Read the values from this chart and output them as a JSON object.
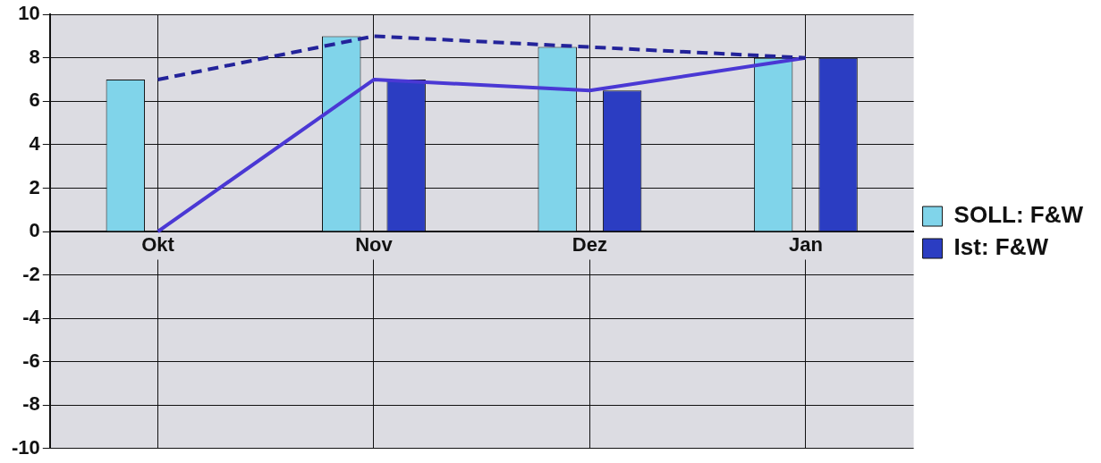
{
  "chart_data": {
    "type": "bar",
    "categories": [
      "Okt",
      "Nov",
      "Dez",
      "Jan"
    ],
    "series": [
      {
        "name": "SOLL: F&W",
        "color": "#80d4ea",
        "values": [
          7,
          9,
          8.5,
          8
        ]
      },
      {
        "name": "Ist: F&W",
        "color": "#2b3dc2",
        "values": [
          0,
          7,
          6.5,
          8
        ]
      },
      {
        "type": "line",
        "color": "#23239a",
        "line_style": "dashed",
        "values": [
          7,
          9,
          8.5,
          8
        ]
      },
      {
        "type": "line",
        "color": "#4a38d4",
        "line_style": "solid",
        "values": [
          0,
          7,
          6.5,
          8
        ]
      }
    ],
    "ylim": [
      -10,
      10
    ],
    "yticks": [
      -10,
      -8,
      -6,
      -4,
      -2,
      0,
      2,
      4,
      6,
      8,
      10
    ],
    "grid": true,
    "legend": "right",
    "marker": "none"
  }
}
